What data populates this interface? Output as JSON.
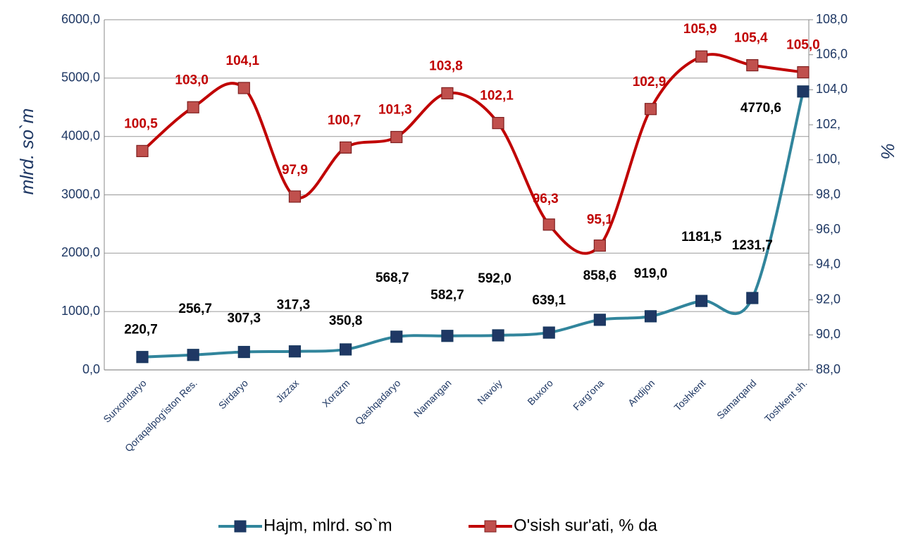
{
  "chart_data": {
    "type": "line",
    "y_label": "mlrd. so`m",
    "y2_label": "%",
    "categories": [
      "Surxondaryo",
      "Qoraqalpog'iston Res.",
      "Sirdaryo",
      "Jizzax",
      "Xorazm",
      "Qashqadaryo",
      "Namangan",
      "Navoiy",
      "Buxoro",
      "Farg'ona",
      "Andijon",
      "Toshkent",
      "Samarqand",
      "Toshkent sh."
    ],
    "series": [
      {
        "name": "Hajm, mlrd. so`m",
        "color": "#31859c",
        "marker_color": "#1f3864",
        "label_color": "#000000",
        "smooth": true,
        "values": [
          220.7,
          256.7,
          307.3,
          317.3,
          350.8,
          568.7,
          582.7,
          592.0,
          639.1,
          858.6,
          919.0,
          1181.5,
          1231.7,
          4770.6
        ],
        "value_labels": [
          "220,7",
          "256,7",
          "307,3",
          "317,3",
          "350,8",
          "568,7",
          "582,7",
          "592,0",
          "639,1",
          "858,6",
          "919,0",
          "1181,5",
          "1231,7",
          "4770,6"
        ]
      },
      {
        "name": "O'sish sur'ati, % da",
        "color": "#c00000",
        "marker_color": "#c0504d",
        "label_color": "#c00000",
        "smooth": true,
        "axis": "y2",
        "values": [
          100.5,
          103.0,
          104.1,
          97.9,
          100.7,
          101.3,
          103.8,
          102.1,
          96.3,
          95.1,
          102.9,
          105.9,
          105.4,
          105.0
        ],
        "value_labels": [
          "100,5",
          "103,0",
          "104,1",
          "97,9",
          "100,7",
          "101,3",
          "103,8",
          "102,1",
          "96,3",
          "95,1",
          "102,9",
          "105,9",
          "105,4",
          "105,0"
        ]
      }
    ],
    "ylim": [
      0,
      6000
    ],
    "yticks": [
      {
        "value": 0,
        "label": "0,0"
      },
      {
        "value": 1000,
        "label": "1000,0"
      },
      {
        "value": 2000,
        "label": "2000,0"
      },
      {
        "value": 3000,
        "label": "3000,0"
      },
      {
        "value": 4000,
        "label": "4000,0"
      },
      {
        "value": 5000,
        "label": "5000,0"
      },
      {
        "value": 6000,
        "label": "6000,0"
      }
    ],
    "y2lim": [
      88,
      108
    ],
    "y2ticks": [
      {
        "value": 88,
        "label": "88,0"
      },
      {
        "value": 90,
        "label": "90,0"
      },
      {
        "value": 92,
        "label": "92,0"
      },
      {
        "value": 94,
        "label": "94,0"
      },
      {
        "value": 96,
        "label": "96,0"
      },
      {
        "value": 98,
        "label": "98,0"
      },
      {
        "value": 100,
        "label": "100,"
      },
      {
        "value": 102,
        "label": "102,"
      },
      {
        "value": 104,
        "label": "104,0"
      },
      {
        "value": 106,
        "label": "106,0"
      },
      {
        "value": 108,
        "label": "108,0"
      }
    ],
    "grid": true,
    "legend": "bottom"
  }
}
